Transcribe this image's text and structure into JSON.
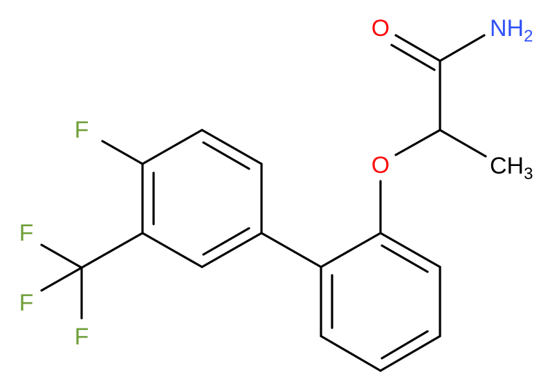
{
  "molecule": {
    "atoms": [
      {
        "id": "F1",
        "label": "F",
        "element": "F"
      },
      {
        "id": "F2",
        "label": "F",
        "element": "F"
      },
      {
        "id": "F3",
        "label": "F",
        "element": "F"
      },
      {
        "id": "F4",
        "label": "F",
        "element": "F"
      },
      {
        "id": "O1",
        "label": "O",
        "element": "O"
      },
      {
        "id": "O2",
        "label": "O",
        "element": "O"
      },
      {
        "id": "N1",
        "label": "NH",
        "sub": "2",
        "element": "N"
      },
      {
        "id": "C1",
        "label": "CH",
        "sub": "3",
        "element": "C"
      }
    ]
  },
  "colors": {
    "F": "#6f9f3a",
    "O": "#ff0d0d",
    "N": "#3050f8",
    "C": "#000000",
    "bond": "#000000"
  }
}
